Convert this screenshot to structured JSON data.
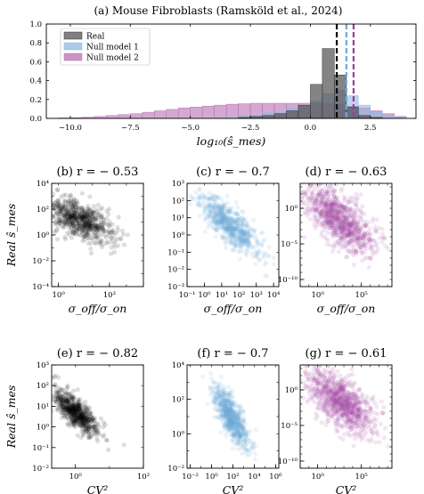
{
  "chart_data": [
    {
      "id": "a",
      "type": "histogram",
      "title": "(a) Mouse Fibroblasts (Ramsköld et al., 2024)",
      "xlabel": "log₁₀(ŝ_mes)",
      "ylabel": "",
      "xlim": [
        -11,
        4.4
      ],
      "ylim": [
        0,
        1.0
      ],
      "x_ticks": [
        "−10.0",
        "−7.5",
        "−5.0",
        "−2.5",
        "0.0",
        "2.5"
      ],
      "x_tick_values": [
        -10,
        -7.5,
        -5,
        -2.5,
        0,
        2.5
      ],
      "y_ticks": [
        "0.0",
        "0.2",
        "0.4",
        "0.6",
        "0.8",
        "1.0"
      ],
      "y_tick_values": [
        0,
        0.2,
        0.4,
        0.6,
        0.8,
        1.0
      ],
      "legend": {
        "placement": "top-left",
        "entries": [
          "Real",
          "Null model 1",
          "Null model 2"
        ]
      },
      "series": [
        {
          "name": "Real",
          "color": "#555555",
          "bins": [
            [
              -3.0,
              -2.5,
              0.01
            ],
            [
              -2.5,
              -2.0,
              0.02
            ],
            [
              -2.0,
              -1.5,
              0.03
            ],
            [
              -1.5,
              -1.0,
              0.05
            ],
            [
              -1.0,
              -0.5,
              0.08
            ],
            [
              -0.5,
              0.0,
              0.14
            ],
            [
              0.0,
              0.5,
              0.36
            ],
            [
              0.5,
              1.0,
              0.74
            ],
            [
              1.0,
              1.5,
              0.46
            ],
            [
              1.5,
              2.0,
              0.12
            ],
            [
              2.0,
              2.5,
              0.03
            ],
            [
              2.5,
              3.0,
              0.01
            ]
          ]
        },
        {
          "name": "Null model 1",
          "color": "#8fb8e0",
          "bins": [
            [
              -4.0,
              -3.0,
              0.01
            ],
            [
              -3.0,
              -2.0,
              0.03
            ],
            [
              -2.0,
              -1.0,
              0.06
            ],
            [
              -1.0,
              0.0,
              0.11
            ],
            [
              0.0,
              0.5,
              0.18
            ],
            [
              0.5,
              1.0,
              0.26
            ],
            [
              1.0,
              1.5,
              0.3
            ],
            [
              1.5,
              2.0,
              0.24
            ],
            [
              2.0,
              2.5,
              0.14
            ],
            [
              2.5,
              3.0,
              0.07
            ],
            [
              3.0,
              3.5,
              0.03
            ],
            [
              3.5,
              4.0,
              0.01
            ]
          ]
        },
        {
          "name": "Null model 2",
          "color": "#b86fb3",
          "bins": [
            [
              -10.5,
              -10.0,
              0.005
            ],
            [
              -10.0,
              -9.5,
              0.008
            ],
            [
              -9.5,
              -9.0,
              0.012
            ],
            [
              -9.0,
              -8.5,
              0.02
            ],
            [
              -8.5,
              -8.0,
              0.03
            ],
            [
              -8.0,
              -7.5,
              0.04
            ],
            [
              -7.5,
              -7.0,
              0.05
            ],
            [
              -7.0,
              -6.5,
              0.065
            ],
            [
              -6.5,
              -6.0,
              0.08
            ],
            [
              -6.0,
              -5.5,
              0.095
            ],
            [
              -5.5,
              -5.0,
              0.11
            ],
            [
              -5.0,
              -4.5,
              0.12
            ],
            [
              -4.5,
              -4.0,
              0.13
            ],
            [
              -4.0,
              -3.5,
              0.14
            ],
            [
              -3.5,
              -3.0,
              0.15
            ],
            [
              -3.0,
              -2.5,
              0.155
            ],
            [
              -2.5,
              -2.0,
              0.16
            ],
            [
              -2.0,
              -1.5,
              0.16
            ],
            [
              -1.5,
              -1.0,
              0.16
            ],
            [
              -1.0,
              -0.5,
              0.16
            ],
            [
              -0.5,
              0.0,
              0.16
            ],
            [
              0.0,
              0.5,
              0.16
            ],
            [
              0.5,
              1.0,
              0.16
            ],
            [
              1.0,
              1.5,
              0.15
            ],
            [
              1.5,
              2.0,
              0.13
            ],
            [
              2.0,
              2.5,
              0.11
            ],
            [
              2.5,
              3.0,
              0.08
            ],
            [
              3.0,
              3.5,
              0.05
            ],
            [
              3.5,
              4.0,
              0.02
            ]
          ]
        }
      ],
      "vlines": [
        {
          "x": 1.1,
          "color": "#000000"
        },
        {
          "x": 1.5,
          "color": "#6fa8d8"
        },
        {
          "x": 1.8,
          "color": "#9c3d98"
        }
      ]
    },
    {
      "id": "b",
      "type": "scatter",
      "title": "(b) r = − 0.53",
      "xlabel": "σ_off/σ_on",
      "ylabel": "Real ŝ_mes",
      "xscale": "log",
      "yscale": "log",
      "xlim_exp": [
        -0.4,
        5
      ],
      "ylim_exp": [
        -4,
        4
      ],
      "x_ticks": [
        {
          "exp": 0,
          "label": "10⁰"
        },
        {
          "exp": 3,
          "label": "10³"
        }
      ],
      "y_ticks": [
        {
          "exp": -4,
          "label": "10⁻⁴"
        },
        {
          "exp": -2,
          "label": "10⁻²"
        },
        {
          "exp": 0,
          "label": "10⁰"
        },
        {
          "exp": 2,
          "label": "10²"
        },
        {
          "exp": 4,
          "label": "10⁴"
        }
      ],
      "color": "#000000",
      "r": -0.53,
      "cloud": {
        "x_center": 1.2,
        "x_spread": 1.0,
        "y_at_center": 1.2,
        "slope": -0.55,
        "y_spread": 0.7,
        "n": 650
      }
    },
    {
      "id": "c",
      "type": "scatter",
      "title": "(c) r = − 0.7",
      "xlabel": "σ_off/σ_on",
      "ylabel": "",
      "xscale": "log",
      "yscale": "log",
      "xlim_exp": [
        -1,
        4.3
      ],
      "ylim_exp": [
        -3,
        3
      ],
      "x_ticks": [
        {
          "exp": -1,
          "label": "10⁻¹"
        },
        {
          "exp": 0,
          "label": "10⁰"
        },
        {
          "exp": 1,
          "label": "10¹"
        },
        {
          "exp": 2,
          "label": "10²"
        },
        {
          "exp": 3,
          "label": "10³"
        },
        {
          "exp": 4,
          "label": "10⁴"
        }
      ],
      "y_ticks": [
        {
          "exp": -3,
          "label": "10⁻³"
        },
        {
          "exp": -2,
          "label": "10⁻²"
        },
        {
          "exp": -1,
          "label": "10⁻¹"
        },
        {
          "exp": 0,
          "label": "10⁰"
        },
        {
          "exp": 1,
          "label": "10¹"
        },
        {
          "exp": 2,
          "label": "10²"
        },
        {
          "exp": 3,
          "label": "10³"
        }
      ],
      "color": "#6fa8d8",
      "r": -0.7,
      "cloud": {
        "x_center": 1.5,
        "x_spread": 0.9,
        "y_at_center": 0.5,
        "slope": -0.75,
        "y_spread": 0.55,
        "n": 700
      }
    },
    {
      "id": "d",
      "type": "scatter",
      "title": "(d) r = − 0.63",
      "xlabel": "σ_off/σ_on",
      "ylabel": "",
      "xscale": "log",
      "yscale": "log",
      "xlim_exp": [
        -2,
        8.5
      ],
      "ylim_exp": [
        -11,
        3.5
      ],
      "x_ticks": [
        {
          "exp": 0,
          "label": "10⁰"
        },
        {
          "exp": 5,
          "label": "10⁵"
        }
      ],
      "y_ticks": [
        {
          "exp": -10,
          "label": "10⁻¹⁰"
        },
        {
          "exp": -5,
          "label": "10⁻⁵"
        },
        {
          "exp": 0,
          "label": "10⁰"
        }
      ],
      "color": "#a3449f",
      "r": -0.63,
      "cloud": {
        "x_center": 2.5,
        "x_spread": 2.0,
        "y_at_center": -1.5,
        "slope": -0.8,
        "y_spread": 1.8,
        "n": 900
      }
    },
    {
      "id": "e",
      "type": "scatter",
      "title": "(e) r = − 0.82",
      "xlabel": "CV²",
      "ylabel": "Real ŝ_mes",
      "xscale": "log",
      "yscale": "log",
      "xlim_exp": [
        -0.7,
        2
      ],
      "ylim_exp": [
        -2,
        3
      ],
      "x_ticks": [
        {
          "exp": 0,
          "label": "10⁰"
        },
        {
          "exp": 2,
          "label": "10²"
        }
      ],
      "y_ticks": [
        {
          "exp": -2,
          "label": "10⁻²"
        },
        {
          "exp": -1,
          "label": "10⁻¹"
        },
        {
          "exp": 0,
          "label": "10⁰"
        },
        {
          "exp": 1,
          "label": "10¹"
        },
        {
          "exp": 2,
          "label": "10²"
        },
        {
          "exp": 3,
          "label": "10³"
        }
      ],
      "color": "#000000",
      "r": -0.82,
      "cloud": {
        "x_center": 0.0,
        "x_spread": 0.35,
        "y_at_center": 0.7,
        "slope": -1.25,
        "y_spread": 0.35,
        "n": 650
      }
    },
    {
      "id": "f",
      "type": "scatter",
      "title": "(f) r = − 0.7",
      "xlabel": "CV²",
      "ylabel": "",
      "xscale": "log",
      "yscale": "log",
      "xlim_exp": [
        -2.3,
        6.3
      ],
      "ylim_exp": [
        -2,
        4
      ],
      "x_ticks": [
        {
          "exp": -2,
          "label": "10⁻²"
        },
        {
          "exp": 0,
          "label": "10⁰"
        },
        {
          "exp": 2,
          "label": "10²"
        },
        {
          "exp": 4,
          "label": "10⁴"
        },
        {
          "exp": 6,
          "label": "10⁶"
        }
      ],
      "y_ticks": [
        {
          "exp": -2,
          "label": "10⁻²"
        },
        {
          "exp": 0,
          "label": "10⁰"
        },
        {
          "exp": 2,
          "label": "10²"
        },
        {
          "exp": 4,
          "label": "10⁴"
        }
      ],
      "color": "#6fa8d8",
      "r": -0.7,
      "cloud": {
        "x_center": 1.8,
        "x_spread": 0.8,
        "y_at_center": 1.0,
        "slope": -0.8,
        "y_spread": 0.55,
        "n": 700
      }
    },
    {
      "id": "g",
      "type": "scatter",
      "title": "(g) r = − 0.61",
      "xlabel": "CV²",
      "ylabel": "",
      "xscale": "log",
      "yscale": "log",
      "xlim_exp": [
        -2,
        8.5
      ],
      "ylim_exp": [
        -11,
        3.5
      ],
      "x_ticks": [
        {
          "exp": 0,
          "label": "10⁰"
        },
        {
          "exp": 5,
          "label": "10⁵"
        }
      ],
      "y_ticks": [
        {
          "exp": -10,
          "label": "10⁻¹⁰"
        },
        {
          "exp": -5,
          "label": "10⁻⁵"
        },
        {
          "exp": 0,
          "label": "10⁰"
        }
      ],
      "color": "#a3449f",
      "r": -0.61,
      "cloud": {
        "x_center": 2.5,
        "x_spread": 2.0,
        "y_at_center": -1.5,
        "slope": -0.8,
        "y_spread": 1.8,
        "n": 900
      }
    }
  ]
}
